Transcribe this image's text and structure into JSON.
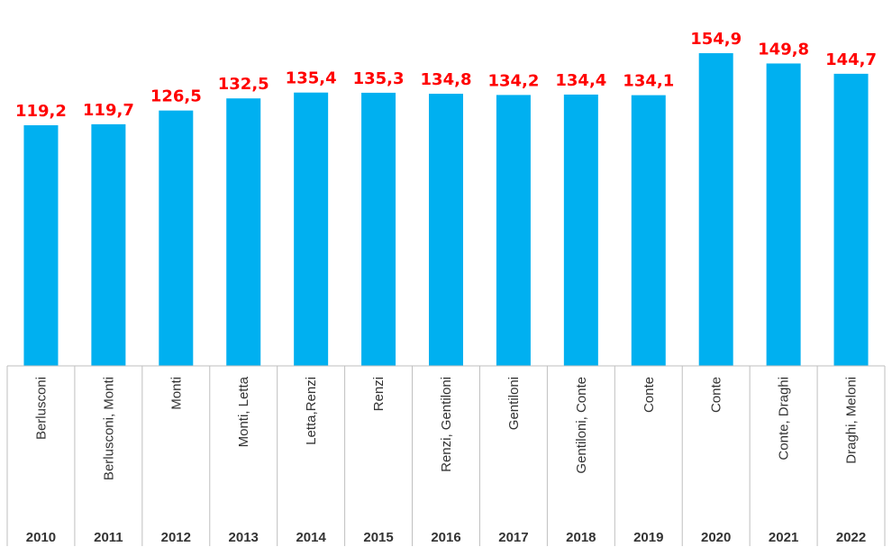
{
  "chart_data": {
    "type": "bar",
    "title": "",
    "xlabel": "",
    "ylabel": "",
    "ylim": [
      0,
      160
    ],
    "grid": false,
    "legend": "none",
    "years": [
      "2010",
      "2011",
      "2012",
      "2013",
      "2014",
      "2015",
      "2016",
      "2017",
      "2018",
      "2019",
      "2020",
      "2021",
      "2022"
    ],
    "categories": [
      "Berlusconi",
      "Berlusconi, Monti",
      "Monti",
      "Monti, Letta",
      "Letta,Renzi",
      "Renzi",
      "Renzi, Gentiloni",
      "Gentiloni",
      "Gentiloni, Conte",
      "Conte",
      "Conte",
      "Conte, Draghi",
      "Draghi, Meloni"
    ],
    "values": [
      119.2,
      119.7,
      126.5,
      132.5,
      135.4,
      135.3,
      134.8,
      134.2,
      134.4,
      134.1,
      154.9,
      149.8,
      144.7
    ],
    "value_labels": [
      "119,2",
      "119,7",
      "126,5",
      "132,5",
      "135,4",
      "135,3",
      "134,8",
      "134,2",
      "134,4",
      "134,1",
      "154,9",
      "149,8",
      "144,7"
    ],
    "colors": {
      "bar": "#00b0f0",
      "label": "#ff0000",
      "grid": "#bfbfbf"
    }
  }
}
